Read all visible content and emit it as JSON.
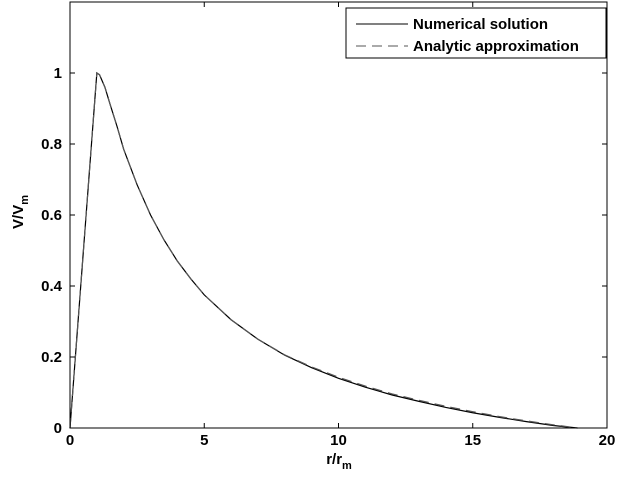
{
  "chart_data": {
    "type": "line",
    "title": "",
    "xlabel": {
      "main": "r/r",
      "sub": "m"
    },
    "ylabel": {
      "main": "V/V",
      "sub": "m"
    },
    "xlim": [
      0,
      20
    ],
    "ylim": [
      0,
      1.2
    ],
    "xticks": [
      0,
      5,
      10,
      15,
      20
    ],
    "yticks": [
      0,
      0.2,
      0.4,
      0.6,
      0.8,
      1
    ],
    "xtick_labels": [
      "0",
      "5",
      "10",
      "15",
      "20"
    ],
    "ytick_labels": [
      "0",
      "0.2",
      "0.4",
      "0.6",
      "0.8",
      "1"
    ],
    "grid": false,
    "legend": "top-right",
    "series": [
      {
        "name": "Numerical solution",
        "style": "solid",
        "color": "#000000",
        "x": [
          0,
          0.5,
          1.0,
          1.1,
          1.3,
          1.5,
          1.75,
          2.0,
          2.5,
          3.0,
          3.5,
          4.0,
          4.5,
          5.0,
          5.5,
          6.0,
          7.0,
          8.0,
          9.0,
          10.0,
          11.0,
          12.0,
          13.0,
          14.0,
          15.0,
          16.0,
          17.0,
          18.0,
          18.9
        ],
        "y": [
          0,
          0.5,
          1.0,
          0.995,
          0.96,
          0.91,
          0.85,
          0.785,
          0.685,
          0.6,
          0.53,
          0.47,
          0.42,
          0.375,
          0.34,
          0.305,
          0.25,
          0.205,
          0.17,
          0.14,
          0.115,
          0.093,
          0.075,
          0.058,
          0.043,
          0.03,
          0.018,
          0.007,
          0
        ]
      },
      {
        "name": "Analytic approximation",
        "style": "dashed",
        "color": "#555555",
        "x": [
          0,
          0.5,
          1.0,
          1.1,
          1.3,
          1.5,
          1.75,
          2.0,
          2.5,
          3.0,
          3.5,
          4.0,
          4.5,
          5.0,
          5.5,
          6.0,
          7.0,
          8.0,
          9.0,
          10.0,
          11.0,
          12.0,
          13.0,
          14.0,
          15.0,
          16.0,
          17.0,
          18.0,
          18.9
        ],
        "y": [
          0,
          0.5,
          1.0,
          0.995,
          0.96,
          0.91,
          0.85,
          0.785,
          0.685,
          0.6,
          0.53,
          0.47,
          0.42,
          0.375,
          0.34,
          0.305,
          0.25,
          0.206,
          0.172,
          0.143,
          0.118,
          0.096,
          0.078,
          0.061,
          0.046,
          0.032,
          0.02,
          0.009,
          0
        ]
      }
    ]
  }
}
